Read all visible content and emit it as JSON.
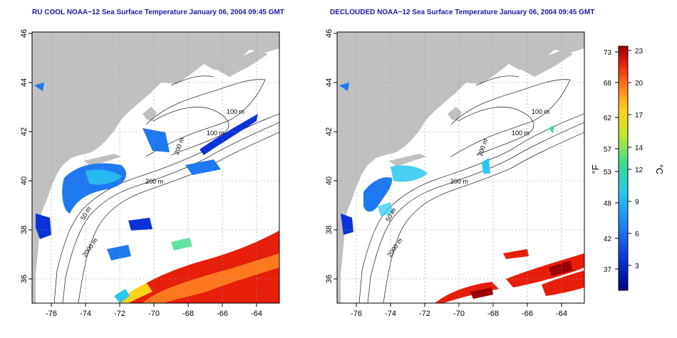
{
  "titles": {
    "left": "RU COOL NOAA−12 Sea Surface Temperature January 06, 2004 09:45 GMT",
    "right": "DECLOUDED NOAA−12 Sea Surface Temperature January 06, 2004 09:45 GMT"
  },
  "axes": {
    "lon_ticks": [
      "-76",
      "-74",
      "-72",
      "-70",
      "-68",
      "-66",
      "-64"
    ],
    "lat_ticks": [
      "46",
      "44",
      "42",
      "40",
      "38",
      "36"
    ]
  },
  "contour_labels": {
    "left": [
      "100 m",
      "100 m",
      "200 m",
      "50 m",
      "200 m",
      "2000 m"
    ],
    "right": [
      "100 m",
      "100 m",
      "200 m",
      "200 m",
      "50 m",
      "2000 m"
    ]
  },
  "colorbar": {
    "fahrenheit_ticks": [
      "73",
      "68",
      "62",
      "57",
      "53",
      "48",
      "42",
      "37"
    ],
    "celsius_ticks": [
      "23",
      "20",
      "17",
      "14",
      "12",
      "9",
      "6",
      "3"
    ],
    "f_unit": "°F",
    "c_unit": "°C"
  },
  "colors": {
    "land": "#c0c0c0",
    "ocean": "#ffffff",
    "title": "#1a1aa6",
    "contour": "#333333"
  }
}
